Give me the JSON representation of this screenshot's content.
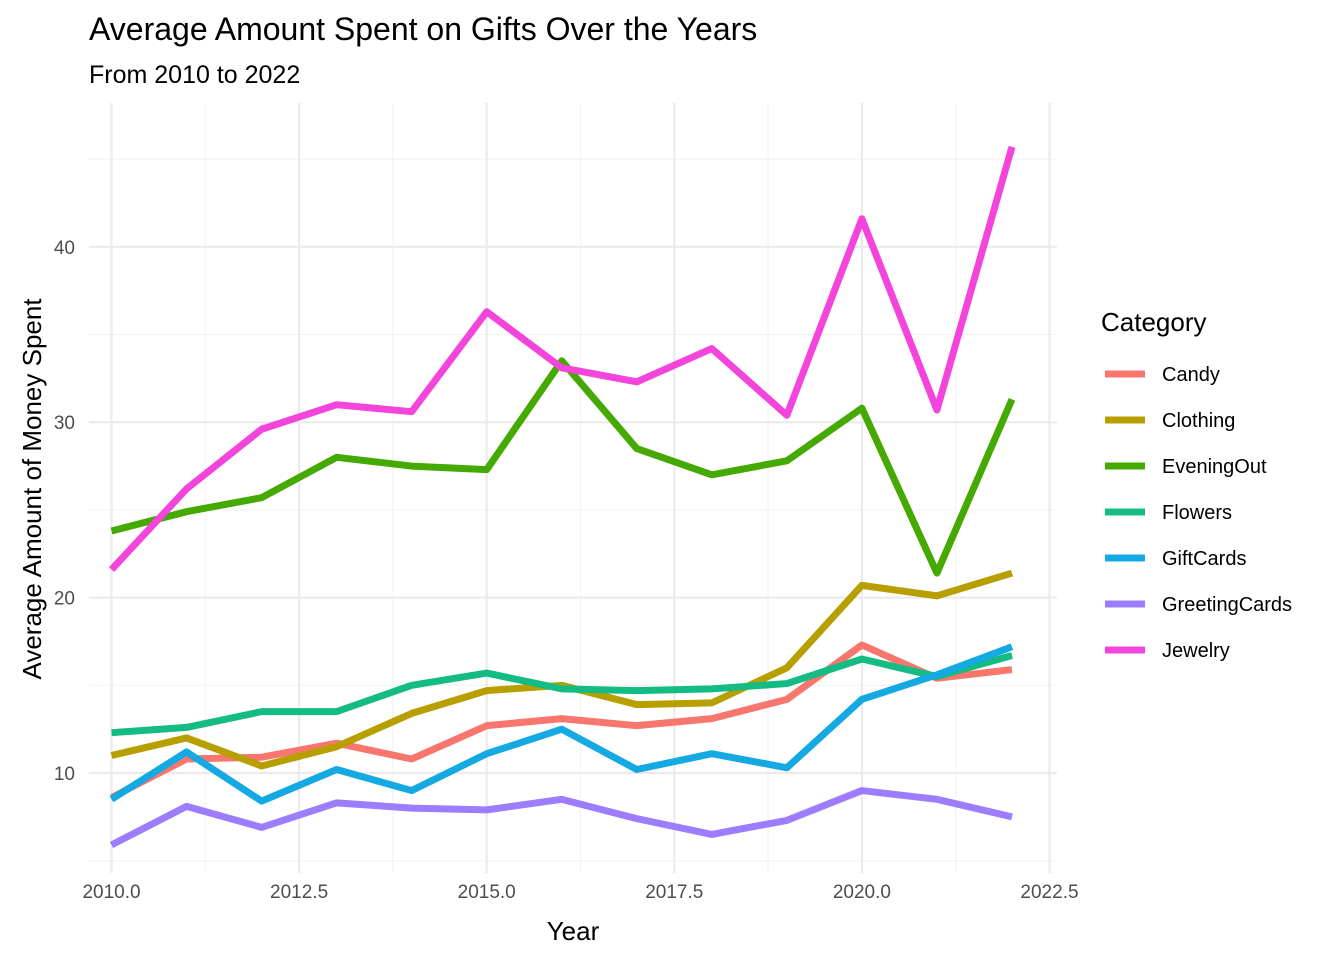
{
  "chart_data": {
    "type": "line",
    "title": "Average Amount Spent on Gifts Over the Years",
    "subtitle": "From 2010 to 2022",
    "xlabel": "Year",
    "ylabel": "Average Amount of Money Spent",
    "xlim": [
      2009.7,
      2022.6
    ],
    "ylim": [
      4.3,
      48.2
    ],
    "x_ticks": [
      "2010.0",
      "2012.5",
      "2015.0",
      "2017.5",
      "2020.0",
      "2022.5"
    ],
    "y_ticks": [
      "10",
      "20",
      "30",
      "40"
    ],
    "grid": true,
    "legend_title": "Category",
    "legend_position": "right",
    "x": [
      2010,
      2011,
      2012,
      2013,
      2014,
      2015,
      2016,
      2017,
      2018,
      2019,
      2020,
      2021,
      2022
    ],
    "series": [
      {
        "name": "Candy",
        "color": "#F8766D",
        "values": [
          8.6,
          10.8,
          10.9,
          11.7,
          10.8,
          12.7,
          13.1,
          12.7,
          13.1,
          14.2,
          17.3,
          15.4,
          15.9
        ]
      },
      {
        "name": "Clothing",
        "color": "#B79F00",
        "values": [
          11.0,
          12.0,
          10.4,
          11.5,
          13.4,
          14.7,
          15.0,
          13.9,
          14.0,
          16.0,
          20.7,
          20.1,
          21.4
        ]
      },
      {
        "name": "EveningOut",
        "color": "#44A900",
        "values": [
          23.8,
          24.9,
          25.7,
          28.0,
          27.5,
          27.3,
          33.5,
          28.5,
          27.0,
          27.8,
          30.8,
          21.4,
          31.3
        ]
      },
      {
        "name": "Flowers",
        "color": "#14BC84",
        "values": [
          12.3,
          12.6,
          13.5,
          13.5,
          15.0,
          15.7,
          14.8,
          14.7,
          14.8,
          15.1,
          16.5,
          15.5,
          16.7
        ]
      },
      {
        "name": "GiftCards",
        "color": "#14A9E3",
        "values": [
          8.5,
          11.2,
          8.4,
          10.2,
          9.0,
          11.1,
          12.5,
          10.2,
          11.1,
          10.3,
          14.2,
          15.6,
          17.2
        ]
      },
      {
        "name": "GreetingCards",
        "color": "#9C7CFF",
        "values": [
          5.9,
          8.1,
          6.9,
          8.3,
          8.0,
          7.9,
          8.5,
          7.4,
          6.5,
          7.3,
          9.0,
          8.5,
          7.5
        ]
      },
      {
        "name": "Jewelry",
        "color": "#F344DB",
        "values": [
          21.6,
          26.2,
          29.6,
          31.0,
          30.6,
          36.3,
          33.1,
          32.3,
          34.2,
          30.4,
          41.6,
          30.7,
          45.7
        ]
      }
    ]
  }
}
